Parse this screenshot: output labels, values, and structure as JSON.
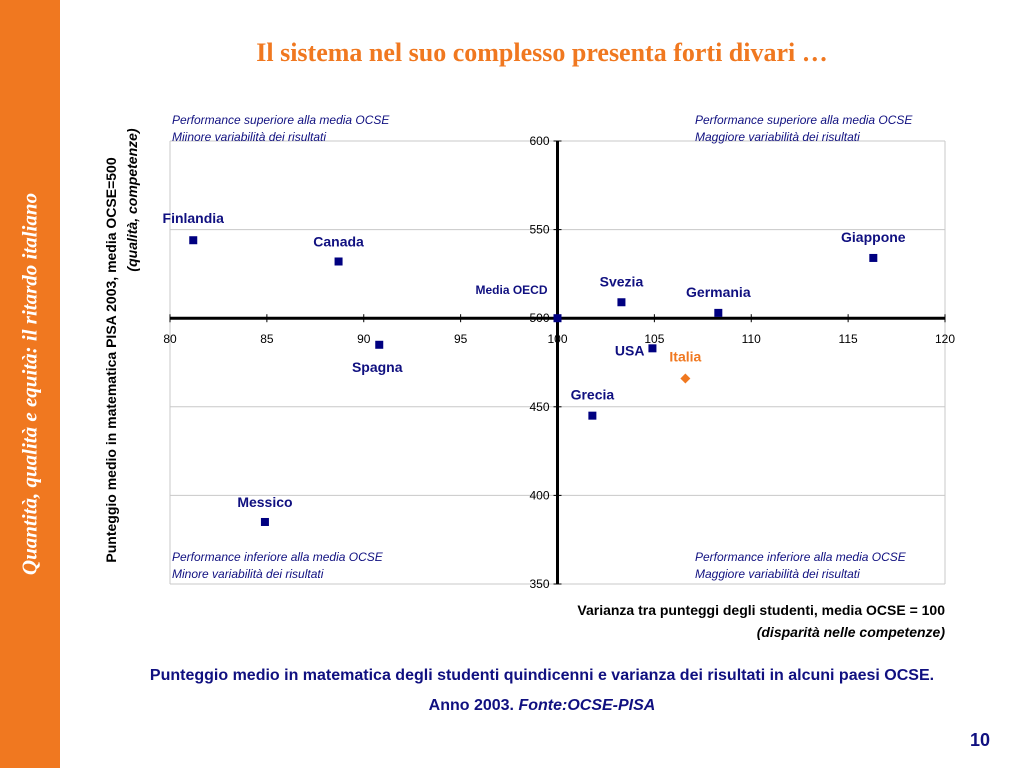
{
  "sidebar": {
    "text": "Quantità, qualità e equità: il ritardo italiano"
  },
  "slide": {
    "title": "Il sistema nel suo complesso presenta forti divari …",
    "caption_line1": "Punteggio medio in matematica degli studenti quindicenni e varianza dei risultati in alcuni paesi OCSE.",
    "caption_line2_prefix": "Anno 2003. ",
    "caption_line2_source": "Fonte:OCSE-PISA",
    "page_number": "10"
  },
  "colors": {
    "accent": "#f07820",
    "navy": "#101080",
    "point": "#000080",
    "italia": "#f07820",
    "grid": "#c8c8c8"
  },
  "chart_data": {
    "type": "scatter",
    "xlabel": "Varianza tra punteggi degli studenti, media OCSE = 100",
    "xlabel_sub": "(disparità nelle competenze)",
    "ylabel": "Punteggio medio in matematica PISA 2003, media OCSE=500",
    "ylabel_sub": "(qualità, competenze)",
    "xlim": [
      80,
      120
    ],
    "ylim": [
      350,
      600
    ],
    "xticks": [
      "80",
      "85",
      "90",
      "95",
      "100",
      "105",
      "110",
      "115",
      "120"
    ],
    "yticks": [
      "350",
      "400",
      "450",
      "500",
      "550",
      "600"
    ],
    "x_tick_values": [
      80,
      85,
      90,
      95,
      100,
      105,
      110,
      115,
      120
    ],
    "y_tick_values": [
      350,
      400,
      450,
      500,
      550,
      600
    ],
    "reference": {
      "x": 100,
      "y": 500
    },
    "grid": true,
    "points": [
      {
        "label": "Finlandia",
        "x": 81.2,
        "y": 544
      },
      {
        "label": "Canada",
        "x": 88.7,
        "y": 532
      },
      {
        "label": "Spagna",
        "x": 90.8,
        "y": 485
      },
      {
        "label": "Messico",
        "x": 84.9,
        "y": 385
      },
      {
        "label": "Media OECD",
        "x": 100,
        "y": 500
      },
      {
        "label": "Svezia",
        "x": 103.3,
        "y": 509
      },
      {
        "label": "Germania",
        "x": 108.3,
        "y": 503
      },
      {
        "label": "USA",
        "x": 104.9,
        "y": 483
      },
      {
        "label": "Italia",
        "x": 106.6,
        "y": 466,
        "highlight": true
      },
      {
        "label": "Grecia",
        "x": 101.8,
        "y": 445
      },
      {
        "label": "Giappone",
        "x": 116.3,
        "y": 534
      }
    ],
    "quadrants": [
      {
        "line1": "Performance  superiore alla media OCSE",
        "line2": "Miinore variabilità dei risultati"
      },
      {
        "line1": "Performance  superiore alla media OCSE",
        "line2": "Maggiore variabilità dei risultati"
      },
      {
        "line1": "Performance inferiore alla media OCSE",
        "line2": "Minore variabilità dei risultati"
      },
      {
        "line1": "Performance inferiore alla media OCSE",
        "line2": "Maggiore variabilità dei risultati"
      }
    ]
  }
}
